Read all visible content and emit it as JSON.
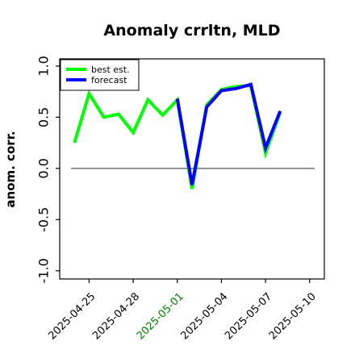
{
  "chart_data": {
    "type": "line",
    "title": "Anomaly crrltn, MLD",
    "ylabel": "anom. corr.",
    "xlabel": "",
    "ylim": [
      -1.0,
      1.0
    ],
    "xlim": [
      "2025-04-23",
      "2025-05-11"
    ],
    "yticks": [
      "-1.0",
      "-0.5",
      "0.0",
      "0.5",
      "1.0"
    ],
    "ytick_values": [
      -1.0,
      -0.5,
      0.0,
      0.5,
      1.0
    ],
    "xticks": [
      "2025-04-25",
      "2025-04-28",
      "2025-05-01",
      "2025-05-04",
      "2025-05-07",
      "2025-05-10"
    ],
    "xtick_colors": [
      "#000000",
      "#000000",
      "#008000",
      "#000000",
      "#000000",
      "#000000"
    ],
    "zero_line": true,
    "grid": false,
    "legend_position": "top-left",
    "series": [
      {
        "name": "best est.",
        "color": "#00ff00",
        "x": [
          "2025-04-24",
          "2025-04-25",
          "2025-04-26",
          "2025-04-27",
          "2025-04-28",
          "2025-04-29",
          "2025-04-30",
          "2025-05-01",
          "2025-05-02",
          "2025-05-03",
          "2025-05-04",
          "2025-05-05",
          "2025-05-06",
          "2025-05-07",
          "2025-05-08"
        ],
        "values": [
          0.25,
          0.73,
          0.5,
          0.53,
          0.35,
          0.67,
          0.52,
          0.67,
          -0.2,
          0.62,
          0.77,
          0.8,
          0.81,
          0.15,
          0.55
        ]
      },
      {
        "name": "forecast",
        "color": "#0000ff",
        "x": [
          "2025-05-01",
          "2025-05-02",
          "2025-05-03",
          "2025-05-04",
          "2025-05-05",
          "2025-05-06",
          "2025-05-07",
          "2025-05-08"
        ],
        "values": [
          0.68,
          -0.16,
          0.6,
          0.76,
          0.78,
          0.82,
          0.2,
          0.56
        ]
      }
    ]
  }
}
